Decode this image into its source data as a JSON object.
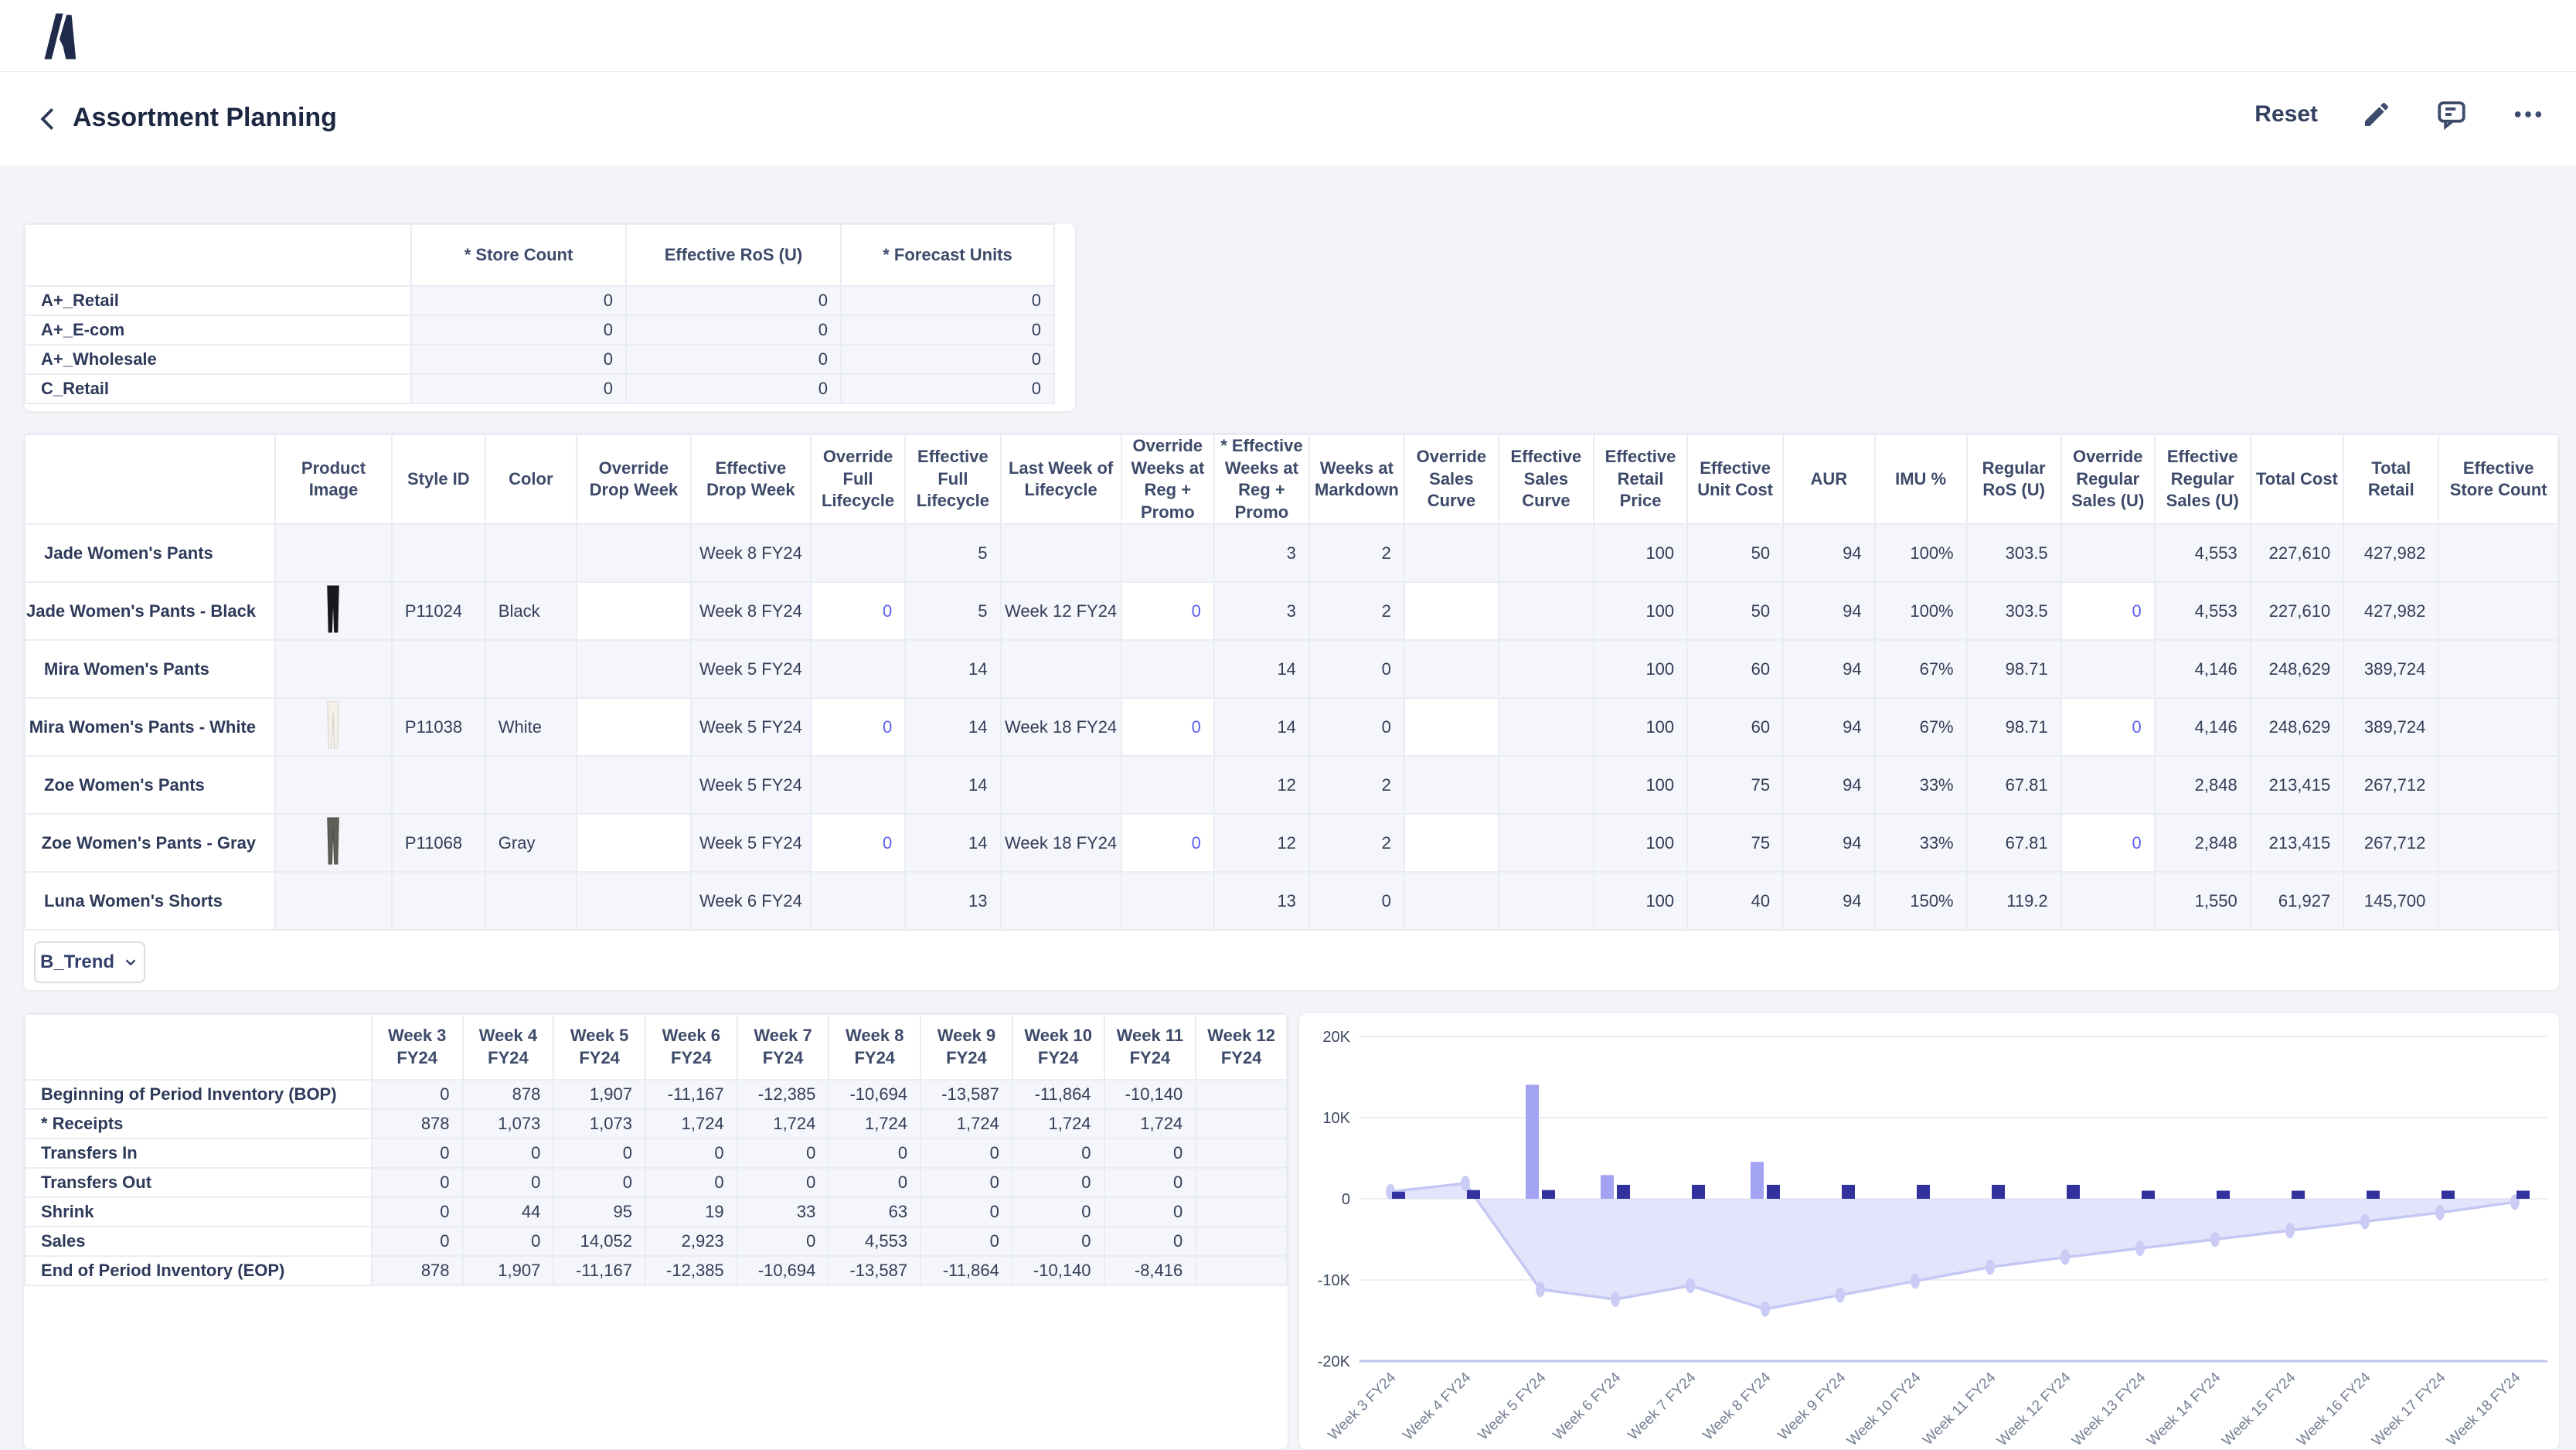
{
  "brand": {
    "logo_letter": "A"
  },
  "header": {
    "title": "Assortment Planning",
    "reset_label": "Reset",
    "icons": [
      "back-icon",
      "edit-pencil-icon",
      "comment-icon",
      "more-ellipsis-icon"
    ]
  },
  "colors": {
    "accent_editable": "#5b5ef2",
    "text_dark": "#2e3a5a",
    "cell_bg": "#f4f6fb",
    "receipts_bar": "#32329e",
    "sales_bar": "#a2a3f3",
    "area_fill": "#dcddfa",
    "area_line": "#c5c7f4"
  },
  "summary_table": {
    "columns": [
      "* Store Count",
      "Effective RoS (U)",
      "* Forecast Units"
    ],
    "rows": [
      {
        "label": "A+_Retail",
        "values": [
          "0",
          "0",
          "0"
        ]
      },
      {
        "label": "A+_E-com",
        "values": [
          "0",
          "0",
          "0"
        ]
      },
      {
        "label": "A+_Wholesale",
        "values": [
          "0",
          "0",
          "0"
        ]
      },
      {
        "label": "C_Retail",
        "values": [
          "0",
          "0",
          "0"
        ]
      }
    ]
  },
  "assortment_table": {
    "columns": [
      "",
      "Product Image",
      "Style ID",
      "Color",
      "Override Drop Week",
      "Effective Drop Week",
      "Override Full Lifecycle",
      "Effective Full Lifecycle",
      "Last Week of Lifecycle",
      "Override Weeks at Reg + Promo",
      "* Effective Weeks at Reg + Promo",
      "Weeks at Markdown",
      "Override Sales Curve",
      "Effective Sales Curve",
      "Effective Retail Price",
      "Effective Unit Cost",
      "AUR",
      "IMU %",
      "Regular RoS (U)",
      "Override Regular Sales (U)",
      "Effective Regular Sales (U)",
      "Total Cost",
      "Total Retail",
      "Effective Store Count"
    ],
    "editable_value_columns": [
      3,
      5,
      8,
      11,
      18
    ],
    "rows": [
      {
        "label": "Jade Women's Pants",
        "type": "parent",
        "values": [
          "",
          "",
          "",
          "",
          "Week 8 FY24",
          "",
          "5",
          "",
          "",
          "3",
          "2",
          "",
          "",
          "100",
          "50",
          "94",
          "100%",
          "303.5",
          "",
          "4,553",
          "227,610",
          "427,982",
          ""
        ]
      },
      {
        "label": "Jade Women's Pants - Black",
        "type": "child",
        "values": [
          "pants-black",
          "P11024",
          "Black",
          "",
          "Week 8 FY24",
          "0",
          "5",
          "Week 12 FY24",
          "0",
          "3",
          "2",
          "",
          "",
          "100",
          "50",
          "94",
          "100%",
          "303.5",
          "0",
          "4,553",
          "227,610",
          "427,982",
          ""
        ]
      },
      {
        "label": "Mira Women's Pants",
        "type": "parent",
        "values": [
          "",
          "",
          "",
          "",
          "Week 5 FY24",
          "",
          "14",
          "",
          "",
          "14",
          "0",
          "",
          "",
          "100",
          "60",
          "94",
          "67%",
          "98.71",
          "",
          "4,146",
          "248,629",
          "389,724",
          ""
        ]
      },
      {
        "label": "Mira Women's Pants - White",
        "type": "child",
        "values": [
          "pants-white",
          "P11038",
          "White",
          "",
          "Week 5 FY24",
          "0",
          "14",
          "Week 18 FY24",
          "0",
          "14",
          "0",
          "",
          "",
          "100",
          "60",
          "94",
          "67%",
          "98.71",
          "0",
          "4,146",
          "248,629",
          "389,724",
          ""
        ]
      },
      {
        "label": "Zoe Women's Pants",
        "type": "parent",
        "values": [
          "",
          "",
          "",
          "",
          "Week 5 FY24",
          "",
          "14",
          "",
          "",
          "12",
          "2",
          "",
          "",
          "100",
          "75",
          "94",
          "33%",
          "67.81",
          "",
          "2,848",
          "213,415",
          "267,712",
          ""
        ]
      },
      {
        "label": "Zoe Women's Pants - Gray",
        "type": "child",
        "values": [
          "pants-gray",
          "P11068",
          "Gray",
          "",
          "Week 5 FY24",
          "0",
          "14",
          "Week 18 FY24",
          "0",
          "12",
          "2",
          "",
          "",
          "100",
          "75",
          "94",
          "33%",
          "67.81",
          "0",
          "2,848",
          "213,415",
          "267,712",
          ""
        ]
      },
      {
        "label": "Luna Women's Shorts",
        "type": "parent",
        "values": [
          "",
          "",
          "",
          "",
          "Week 6 FY24",
          "",
          "13",
          "",
          "",
          "13",
          "0",
          "",
          "",
          "100",
          "40",
          "94",
          "150%",
          "119.2",
          "",
          "1,550",
          "61,927",
          "145,700",
          ""
        ]
      }
    ]
  },
  "trend_selector": {
    "label": "B_Trend"
  },
  "inventory_table": {
    "columns": [
      "Week 3 FY24",
      "Week 4 FY24",
      "Week 5 FY24",
      "Week 6 FY24",
      "Week 7 FY24",
      "Week 8 FY24",
      "Week 9 FY24",
      "Week 10 FY24",
      "Week 11 FY24",
      "Week 12 FY24"
    ],
    "rows": [
      {
        "label": "Beginning of Period Inventory (BOP)",
        "values": [
          "0",
          "878",
          "1,907",
          "-11,167",
          "-12,385",
          "-10,694",
          "-13,587",
          "-11,864",
          "-10,140",
          ""
        ]
      },
      {
        "label": "* Receipts",
        "values": [
          "878",
          "1,073",
          "1,073",
          "1,724",
          "1,724",
          "1,724",
          "1,724",
          "1,724",
          "1,724",
          ""
        ]
      },
      {
        "label": "Transfers In",
        "values": [
          "0",
          "0",
          "0",
          "0",
          "0",
          "0",
          "0",
          "0",
          "0",
          ""
        ]
      },
      {
        "label": "Transfers Out",
        "values": [
          "0",
          "0",
          "0",
          "0",
          "0",
          "0",
          "0",
          "0",
          "0",
          ""
        ]
      },
      {
        "label": "Shrink",
        "values": [
          "0",
          "44",
          "95",
          "19",
          "33",
          "63",
          "0",
          "0",
          "0",
          ""
        ]
      },
      {
        "label": "Sales",
        "values": [
          "0",
          "0",
          "14,052",
          "2,923",
          "0",
          "4,553",
          "0",
          "0",
          "0",
          ""
        ]
      },
      {
        "label": "End of Period Inventory (EOP)",
        "values": [
          "878",
          "1,907",
          "-11,167",
          "-12,385",
          "-10,694",
          "-13,587",
          "-11,864",
          "-10,140",
          "-8,416",
          ""
        ]
      }
    ]
  },
  "chart_data": {
    "type": "combo",
    "categories": [
      "Week 3 FY24",
      "Week 4 FY24",
      "Week 5 FY24",
      "Week 6 FY24",
      "Week 7 FY24",
      "Week 8 FY24",
      "Week 9 FY24",
      "Week 10 FY24",
      "Week 11 FY24",
      "Week 12 FY24",
      "Week 13 FY24",
      "Week 14 FY24",
      "Week 15 FY24",
      "Week 16 FY24",
      "Week 17 FY24",
      "Week 18 FY24"
    ],
    "series": [
      {
        "name": "Sales",
        "type": "bar",
        "color": "#a2a3f3",
        "values": [
          0,
          0,
          14052,
          2923,
          0,
          4553,
          0,
          0,
          0,
          0,
          0,
          0,
          0,
          0,
          0,
          0
        ]
      },
      {
        "name": "Receipts",
        "type": "bar",
        "color": "#32329e",
        "values": [
          878,
          1073,
          1073,
          1724,
          1724,
          1724,
          1724,
          1724,
          1724,
          1724,
          1000,
          1000,
          1000,
          1000,
          1000,
          1000
        ]
      },
      {
        "name": "End of Period Inventory",
        "type": "area",
        "color": "#dcddfa",
        "values": [
          878,
          1907,
          -11167,
          -12385,
          -10694,
          -13587,
          -11864,
          -10140,
          -8416,
          -7200,
          -6100,
          -5000,
          -3900,
          -2800,
          -1700,
          -400
        ]
      }
    ],
    "ylim": [
      -20000,
      20000
    ],
    "yticks": [
      {
        "v": 20000,
        "label": "20K"
      },
      {
        "v": 10000,
        "label": "10K"
      },
      {
        "v": 0,
        "label": "0"
      },
      {
        "v": -10000,
        "label": "-10K"
      },
      {
        "v": -20000,
        "label": "-20K"
      }
    ],
    "grid": true,
    "legend": "none"
  }
}
